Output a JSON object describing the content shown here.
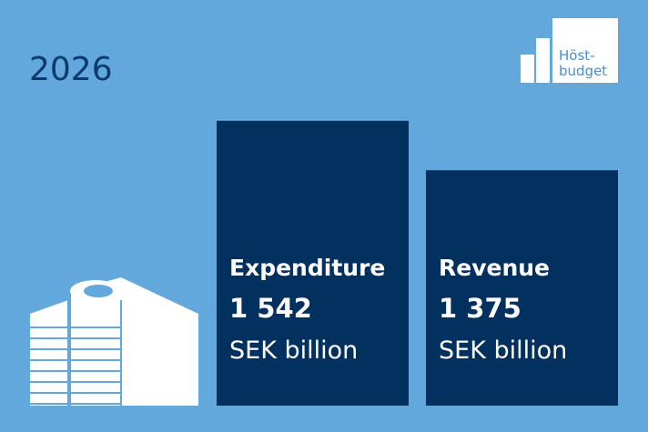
{
  "chart_data": {
    "type": "bar",
    "title": "2026",
    "categories": [
      "Expenditure",
      "Revenue"
    ],
    "values": [
      1542,
      1375
    ],
    "value_labels": [
      "1 542",
      "1 375"
    ],
    "unit": "SEK billion",
    "color": "#03315f",
    "ylim": [
      580,
      1560
    ],
    "logo": [
      "Höst-",
      "budget"
    ]
  }
}
